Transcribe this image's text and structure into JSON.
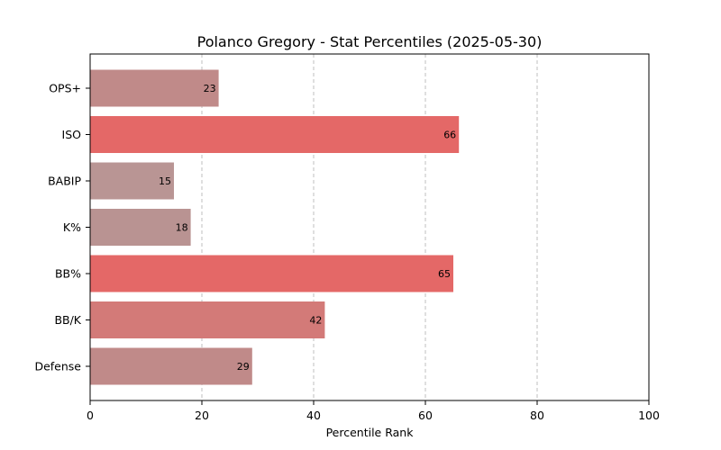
{
  "chart_data": {
    "type": "bar",
    "orientation": "horizontal",
    "title": "Polanco Gregory - Stat Percentiles (2025-05-30)",
    "xlabel": "Percentile Rank",
    "ylabel": "",
    "categories": [
      "OPS+",
      "ISO",
      "BABIP",
      "K%",
      "BB%",
      "BB/K",
      "Defense"
    ],
    "values": [
      23,
      66,
      15,
      18,
      65,
      42,
      29
    ],
    "bar_colors": [
      "#c08a89",
      "#e46867",
      "#b99594",
      "#b99392",
      "#e46867",
      "#d37a78",
      "#c08a89"
    ],
    "xlim": [
      0,
      100
    ],
    "xticks": [
      0,
      20,
      40,
      60,
      80,
      100
    ],
    "grid": "x, dashed"
  }
}
